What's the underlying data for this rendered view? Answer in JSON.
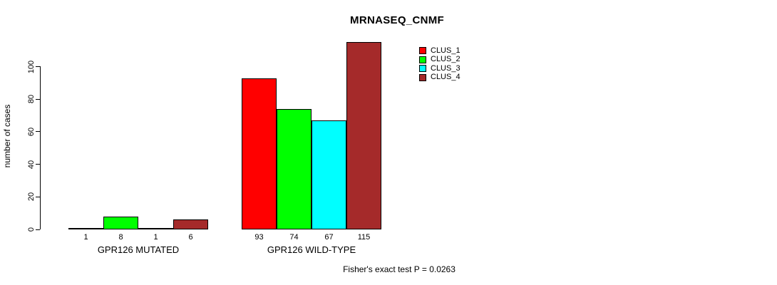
{
  "chart_data": {
    "type": "bar",
    "title": "MRNASEQ_CNMF",
    "ylabel": "number of cases",
    "xlabel": "",
    "ylim": [
      0,
      115
    ],
    "yticks": [
      0,
      20,
      40,
      60,
      80,
      100
    ],
    "grid": false,
    "legend_position": "top-right",
    "categories": [
      "GPR126 MUTATED",
      "GPR126 WILD-TYPE"
    ],
    "series": [
      {
        "name": "CLUS_1",
        "color": "#FF0000",
        "values": [
          1,
          93
        ]
      },
      {
        "name": "CLUS_2",
        "color": "#00FF00",
        "values": [
          8,
          74
        ]
      },
      {
        "name": "CLUS_3",
        "color": "#00FFFF",
        "values": [
          1,
          67
        ]
      },
      {
        "name": "CLUS_4",
        "color": "#A52A2A",
        "values": [
          6,
          115
        ]
      }
    ],
    "bar_value_labels_shown": true,
    "annotation": "Fisher's exact test P = 0.0263"
  }
}
